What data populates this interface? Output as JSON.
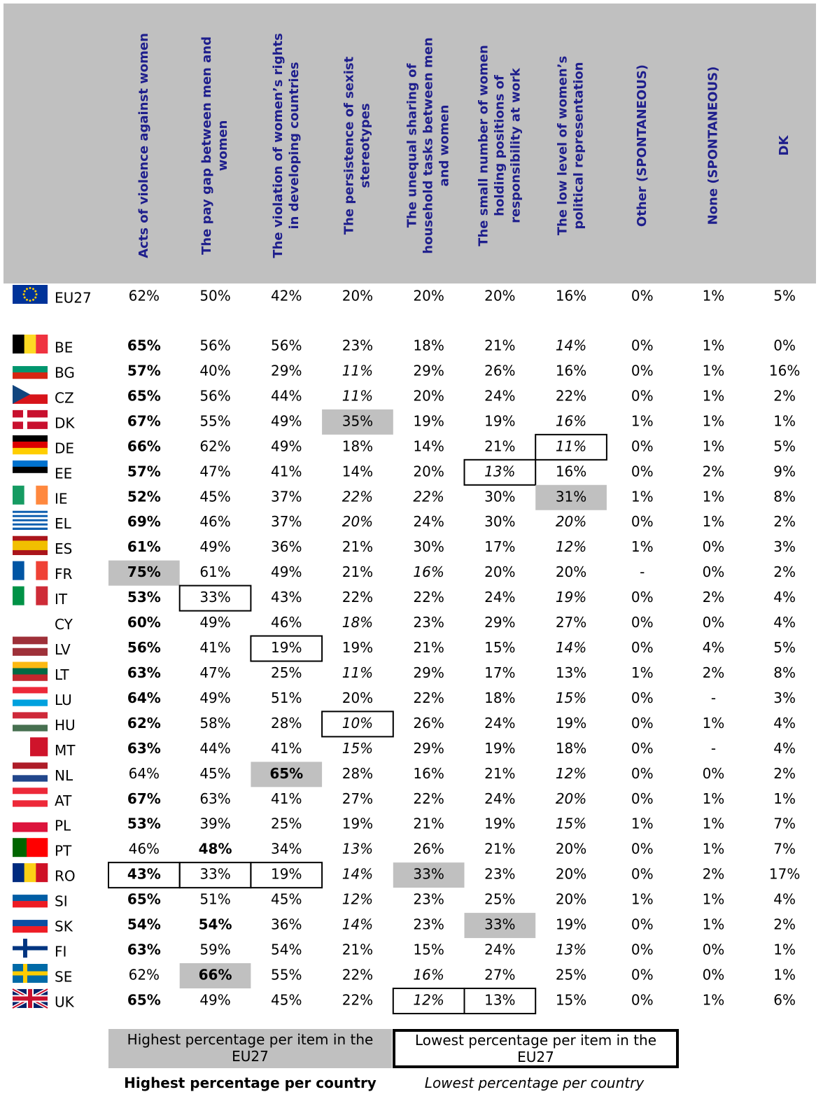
{
  "header": {
    "columns": [
      [
        "Acts of violence against women"
      ],
      [
        "The pay gap between men and",
        "women"
      ],
      [
        "The violation of women’s rights",
        "in developing countries"
      ],
      [
        "The persistence of sexist",
        "stereotypes"
      ],
      [
        "The unequal sharing of",
        "household tasks between men",
        "and women"
      ],
      [
        "The small number of women",
        "holding positions of",
        "responsibility at work"
      ],
      [
        "The low level of women’s",
        "political representation"
      ],
      [
        "Other (SPONTANEOUS)"
      ],
      [
        "None (SPONTANEOUS)"
      ],
      [
        "DK"
      ]
    ]
  },
  "table": {
    "rows": [
      {
        "country": "EU27",
        "cells": [
          "62%",
          "50%",
          "42%",
          "20%",
          "20%",
          "20%",
          "16%",
          "0%",
          "1%",
          "5%"
        ]
      },
      {
        "country": "BE",
        "cells": [
          "65%",
          "56%",
          "56%",
          "23%",
          "18%",
          "21%",
          "14%",
          "0%",
          "1%",
          "0%"
        ],
        "bold": [
          0
        ],
        "italic": [
          6
        ]
      },
      {
        "country": "BG",
        "cells": [
          "57%",
          "40%",
          "29%",
          "11%",
          "29%",
          "26%",
          "16%",
          "0%",
          "1%",
          "16%"
        ],
        "bold": [
          0
        ],
        "italic": [
          3
        ]
      },
      {
        "country": "CZ",
        "cells": [
          "65%",
          "56%",
          "44%",
          "11%",
          "20%",
          "24%",
          "22%",
          "0%",
          "1%",
          "2%"
        ],
        "bold": [
          0
        ],
        "italic": [
          3
        ]
      },
      {
        "country": "DK",
        "cells": [
          "67%",
          "55%",
          "49%",
          "35%",
          "19%",
          "19%",
          "16%",
          "1%",
          "1%",
          "1%"
        ],
        "bold": [
          0
        ],
        "italic": [
          6
        ],
        "highlight": [
          3
        ]
      },
      {
        "country": "DE",
        "cells": [
          "66%",
          "62%",
          "49%",
          "18%",
          "14%",
          "21%",
          "11%",
          "0%",
          "1%",
          "5%"
        ],
        "bold": [
          0
        ],
        "italic": [
          6
        ],
        "box": [
          6
        ]
      },
      {
        "country": "EE",
        "cells": [
          "57%",
          "47%",
          "41%",
          "14%",
          "20%",
          "13%",
          "16%",
          "0%",
          "2%",
          "9%"
        ],
        "bold": [
          0
        ],
        "italic": [
          5
        ],
        "box": [
          5
        ]
      },
      {
        "country": "IE",
        "cells": [
          "52%",
          "45%",
          "37%",
          "22%",
          "22%",
          "30%",
          "31%",
          "1%",
          "1%",
          "8%"
        ],
        "bold": [
          0
        ],
        "italic": [
          3,
          4
        ],
        "highlight": [
          6
        ]
      },
      {
        "country": "EL",
        "cells": [
          "69%",
          "46%",
          "37%",
          "20%",
          "24%",
          "30%",
          "20%",
          "0%",
          "1%",
          "2%"
        ],
        "bold": [
          0
        ],
        "italic": [
          3,
          6
        ]
      },
      {
        "country": "ES",
        "cells": [
          "61%",
          "49%",
          "36%",
          "21%",
          "30%",
          "17%",
          "12%",
          "1%",
          "0%",
          "3%"
        ],
        "bold": [
          0
        ],
        "italic": [
          6
        ]
      },
      {
        "country": "FR",
        "cells": [
          "75%",
          "61%",
          "49%",
          "21%",
          "16%",
          "20%",
          "20%",
          "-",
          "0%",
          "2%"
        ],
        "bold": [
          0
        ],
        "italic": [
          4
        ],
        "highlight": [
          0
        ]
      },
      {
        "country": "IT",
        "cells": [
          "53%",
          "33%",
          "43%",
          "22%",
          "22%",
          "24%",
          "19%",
          "0%",
          "2%",
          "4%"
        ],
        "bold": [
          0
        ],
        "italic": [
          6
        ],
        "box": [
          1
        ]
      },
      {
        "country": "CY",
        "cells": [
          "60%",
          "49%",
          "46%",
          "18%",
          "23%",
          "29%",
          "27%",
          "0%",
          "0%",
          "4%"
        ],
        "bold": [
          0
        ],
        "italic": [
          3
        ]
      },
      {
        "country": "LV",
        "cells": [
          "56%",
          "41%",
          "19%",
          "19%",
          "21%",
          "15%",
          "14%",
          "0%",
          "4%",
          "5%"
        ],
        "bold": [
          0
        ],
        "italic": [
          6
        ],
        "box": [
          2
        ]
      },
      {
        "country": "LT",
        "cells": [
          "63%",
          "47%",
          "25%",
          "11%",
          "29%",
          "17%",
          "13%",
          "1%",
          "2%",
          "8%"
        ],
        "bold": [
          0
        ],
        "italic": [
          3
        ]
      },
      {
        "country": "LU",
        "cells": [
          "64%",
          "49%",
          "51%",
          "20%",
          "22%",
          "18%",
          "15%",
          "0%",
          "-",
          "3%"
        ],
        "bold": [
          0
        ],
        "italic": [
          6
        ]
      },
      {
        "country": "HU",
        "cells": [
          "62%",
          "58%",
          "28%",
          "10%",
          "26%",
          "24%",
          "19%",
          "0%",
          "1%",
          "4%"
        ],
        "bold": [
          0
        ],
        "italic": [
          3
        ],
        "box": [
          3
        ]
      },
      {
        "country": "MT",
        "cells": [
          "63%",
          "44%",
          "41%",
          "15%",
          "29%",
          "19%",
          "18%",
          "0%",
          "-",
          "4%"
        ],
        "bold": [
          0
        ],
        "italic": [
          3
        ]
      },
      {
        "country": "NL",
        "cells": [
          "64%",
          "45%",
          "65%",
          "28%",
          "16%",
          "21%",
          "12%",
          "0%",
          "0%",
          "2%"
        ],
        "bold": [
          2
        ],
        "italic": [
          6
        ],
        "highlight": [
          2
        ]
      },
      {
        "country": "AT",
        "cells": [
          "67%",
          "63%",
          "41%",
          "27%",
          "22%",
          "24%",
          "20%",
          "0%",
          "1%",
          "1%"
        ],
        "bold": [
          0
        ],
        "italic": [
          6
        ]
      },
      {
        "country": "PL",
        "cells": [
          "53%",
          "39%",
          "25%",
          "19%",
          "21%",
          "19%",
          "15%",
          "1%",
          "1%",
          "7%"
        ],
        "bold": [
          0
        ],
        "italic": [
          6
        ]
      },
      {
        "country": "PT",
        "cells": [
          "46%",
          "48%",
          "34%",
          "13%",
          "26%",
          "21%",
          "20%",
          "0%",
          "1%",
          "7%"
        ],
        "bold": [
          1
        ],
        "italic": [
          3
        ]
      },
      {
        "country": "RO",
        "cells": [
          "43%",
          "33%",
          "19%",
          "14%",
          "33%",
          "23%",
          "20%",
          "0%",
          "2%",
          "17%"
        ],
        "bold": [
          0
        ],
        "italic": [
          3
        ],
        "highlight": [
          4
        ],
        "box": [
          0,
          1,
          2
        ]
      },
      {
        "country": "SI",
        "cells": [
          "65%",
          "51%",
          "45%",
          "12%",
          "23%",
          "25%",
          "20%",
          "1%",
          "1%",
          "4%"
        ],
        "bold": [
          0
        ],
        "italic": [
          3
        ]
      },
      {
        "country": "SK",
        "cells": [
          "54%",
          "54%",
          "36%",
          "14%",
          "23%",
          "33%",
          "19%",
          "0%",
          "1%",
          "2%"
        ],
        "bold": [
          0,
          1
        ],
        "italic": [
          3
        ],
        "highlight": [
          5
        ]
      },
      {
        "country": "FI",
        "cells": [
          "63%",
          "59%",
          "54%",
          "21%",
          "15%",
          "24%",
          "13%",
          "0%",
          "0%",
          "1%"
        ],
        "bold": [
          0
        ],
        "italic": [
          6
        ]
      },
      {
        "country": "SE",
        "cells": [
          "62%",
          "66%",
          "55%",
          "22%",
          "16%",
          "27%",
          "25%",
          "0%",
          "0%",
          "1%"
        ],
        "bold": [
          1
        ],
        "italic": [
          4
        ],
        "highlight": [
          1
        ]
      },
      {
        "country": "UK",
        "cells": [
          "65%",
          "49%",
          "45%",
          "22%",
          "12%",
          "13%",
          "15%",
          "0%",
          "1%",
          "6%"
        ],
        "bold": [
          0
        ],
        "italic": [
          4
        ],
        "box": [
          4,
          5
        ]
      }
    ]
  },
  "legend": {
    "highest_item": "Highest percentage per item in the EU27",
    "lowest_item": "Lowest percentage per item in the EU27",
    "highest_country": "Highest percentage per country",
    "lowest_country": "Lowest percentage per country"
  }
}
